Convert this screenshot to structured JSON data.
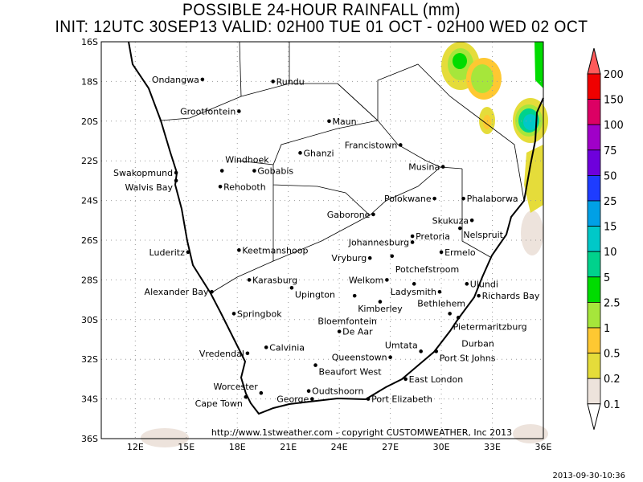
{
  "title": "POSSIBLE 24-HOUR  RAINFALL (mm)",
  "subtitle": "INIT: 12UTC 30SEP13   VALID: 02H00 TUE 01 OCT  -  02H00 WED 02 OCT",
  "credit": "http://www.1stweather.com - copyright CUSTOMWEATHER, Inc 2013",
  "timestamp": "2013-09-30-10:36",
  "map": {
    "lon_range": [
      10,
      36
    ],
    "lat_range": [
      -36,
      -16
    ],
    "lon_ticks": [
      {
        "v": 12,
        "l": "12E"
      },
      {
        "v": 15,
        "l": "15E"
      },
      {
        "v": 18,
        "l": "18E"
      },
      {
        "v": 21,
        "l": "21E"
      },
      {
        "v": 24,
        "l": "24E"
      },
      {
        "v": 27,
        "l": "27E"
      },
      {
        "v": 30,
        "l": "30E"
      },
      {
        "v": 33,
        "l": "33E"
      },
      {
        "v": 36,
        "l": "36E"
      }
    ],
    "lat_ticks": [
      {
        "v": -16,
        "l": "16S"
      },
      {
        "v": -18,
        "l": "18S"
      },
      {
        "v": -20,
        "l": "20S"
      },
      {
        "v": -22,
        "l": "22S"
      },
      {
        "v": -24,
        "l": "24S"
      },
      {
        "v": -26,
        "l": "26S"
      },
      {
        "v": -28,
        "l": "28S"
      },
      {
        "v": -30,
        "l": "30S"
      },
      {
        "v": -32,
        "l": "32S"
      },
      {
        "v": -34,
        "l": "34S"
      },
      {
        "v": -36,
        "l": "36S"
      }
    ],
    "cities": [
      {
        "n": "Ondangwa",
        "lon": 15.95,
        "lat": -17.9
      },
      {
        "n": "Rundu",
        "lon": 20.1,
        "lat": -18.0
      },
      {
        "n": "Grootfontein",
        "lon": 18.1,
        "lat": -19.5
      },
      {
        "n": "Maun",
        "lon": 23.4,
        "lat": -20.0
      },
      {
        "n": "Francistown",
        "lon": 27.6,
        "lat": -21.2
      },
      {
        "n": "Ghanzi",
        "lon": 21.7,
        "lat": -21.6
      },
      {
        "n": "Swakopmund",
        "lon": 14.4,
        "lat": -22.6
      },
      {
        "n": "Walvis Bay",
        "lon": 14.4,
        "lat": -23.0
      },
      {
        "n": "Windhoek",
        "lon": 17.1,
        "lat": -22.5
      },
      {
        "n": "Gobabis",
        "lon": 19.0,
        "lat": -22.5
      },
      {
        "n": "Rehoboth",
        "lon": 17.0,
        "lat": -23.3
      },
      {
        "n": "Musina",
        "lon": 30.1,
        "lat": -22.3
      },
      {
        "n": "Polokwane",
        "lon": 29.6,
        "lat": -23.9
      },
      {
        "n": "Phalaborwa",
        "lon": 31.3,
        "lat": -23.9
      },
      {
        "n": "Gaborone",
        "lon": 26.0,
        "lat": -24.7
      },
      {
        "n": "Skukuza",
        "lon": 31.8,
        "lat": -25.0
      },
      {
        "n": "Nelspruit",
        "lon": 31.1,
        "lat": -25.4
      },
      {
        "n": "Pretoria",
        "lon": 28.3,
        "lat": -25.8
      },
      {
        "n": "Johannesburg",
        "lon": 28.3,
        "lat": -26.1
      },
      {
        "n": "Luderitz",
        "lon": 15.1,
        "lat": -26.6
      },
      {
        "n": "Keetmanshoop",
        "lon": 18.1,
        "lat": -26.5
      },
      {
        "n": "Ermelo",
        "lon": 30.0,
        "lat": -26.6
      },
      {
        "n": "Vryburg",
        "lon": 25.8,
        "lat": -26.9
      },
      {
        "n": "Potchefstroom",
        "lon": 27.1,
        "lat": -26.8
      },
      {
        "n": "Welkom",
        "lon": 26.8,
        "lat": -28.0
      },
      {
        "n": "Karasburg",
        "lon": 18.7,
        "lat": -28.0
      },
      {
        "n": "Bethlehem",
        "lon": 28.4,
        "lat": -28.2
      },
      {
        "n": "Ulundi",
        "lon": 31.5,
        "lat": -28.2
      },
      {
        "n": "Upington",
        "lon": 21.2,
        "lat": -28.4
      },
      {
        "n": "Alexander Bay",
        "lon": 16.5,
        "lat": -28.6
      },
      {
        "n": "Kimberley",
        "lon": 24.9,
        "lat": -28.8
      },
      {
        "n": "Ladysmith",
        "lon": 29.9,
        "lat": -28.6
      },
      {
        "n": "Richards Bay",
        "lon": 32.2,
        "lat": -28.8
      },
      {
        "n": "Bloemfontein",
        "lon": 26.4,
        "lat": -29.1
      },
      {
        "n": "Springbok",
        "lon": 17.8,
        "lat": -29.7
      },
      {
        "n": "Pietermaritzburg",
        "lon": 30.5,
        "lat": -29.7
      },
      {
        "n": "Durban",
        "lon": 31.0,
        "lat": -29.9
      },
      {
        "n": "De Aar",
        "lon": 24.0,
        "lat": -30.6
      },
      {
        "n": "Calvinia",
        "lon": 19.7,
        "lat": -31.4
      },
      {
        "n": "Umtata",
        "lon": 28.8,
        "lat": -31.6
      },
      {
        "n": "Port St Johns",
        "lon": 29.7,
        "lat": -31.6
      },
      {
        "n": "Vredendal",
        "lon": 18.6,
        "lat": -31.7
      },
      {
        "n": "Queenstown",
        "lon": 27.0,
        "lat": -31.9
      },
      {
        "n": "Beaufort West",
        "lon": 22.6,
        "lat": -32.3
      },
      {
        "n": "East London",
        "lon": 27.9,
        "lat": -33.0
      },
      {
        "n": "Worcester",
        "lon": 19.4,
        "lat": -33.7
      },
      {
        "n": "Oudtshoorn",
        "lon": 22.2,
        "lat": -33.6
      },
      {
        "n": "Cape Town",
        "lon": 18.5,
        "lat": -33.9
      },
      {
        "n": "George",
        "lon": 22.4,
        "lat": -34.0
      },
      {
        "n": "Port Elizabeth",
        "lon": 25.7,
        "lat": -34.0
      }
    ]
  },
  "legend": {
    "levels": [
      "0.1",
      "0.2",
      "0.5",
      "1",
      "2.5",
      "5",
      "10",
      "15",
      "25",
      "50",
      "75",
      "100",
      "150",
      "200"
    ],
    "colors": [
      "#ede3dc",
      "#e5dc3a",
      "#fec832",
      "#a6e63b",
      "#00dc00",
      "#00d28c",
      "#00c8c8",
      "#00a0e6",
      "#1e3cff",
      "#6e00dc",
      "#a000c8",
      "#dc0064",
      "#f00000",
      "#ff5a5a"
    ]
  }
}
